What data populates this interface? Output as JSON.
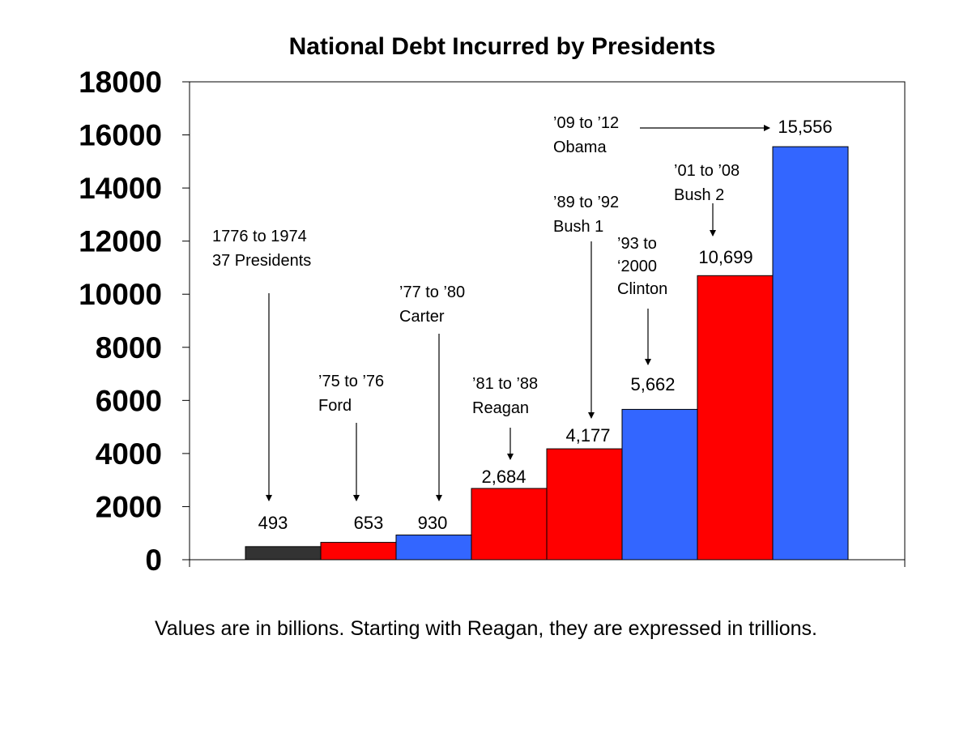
{
  "chart_data": {
    "type": "bar",
    "title": "National Debt Incurred by Presidents",
    "xlabel": "",
    "ylabel": "",
    "ylim": [
      0,
      18000
    ],
    "yticks": [
      "0",
      "2000",
      "4000",
      "6000",
      "8000",
      "10000",
      "12000",
      "14000",
      "16000",
      "18000"
    ],
    "grid": false,
    "legend": "none",
    "bars": [
      {
        "value": 493,
        "label": "493",
        "period": "1776 to 1974",
        "who": "37 Presidents",
        "color": "#333333"
      },
      {
        "value": 653,
        "label": "653",
        "period": "’75 to ’76",
        "who": "Ford",
        "color": "#ff0000"
      },
      {
        "value": 930,
        "label": "930",
        "period": "’77 to ’80",
        "who": "Carter",
        "color": "#3366ff"
      },
      {
        "value": 2684,
        "label": "2,684",
        "period": "’81 to ’88",
        "who": "Reagan",
        "color": "#ff0000"
      },
      {
        "value": 4177,
        "label": "4,177",
        "period": "’89 to ’92",
        "who": "Bush 1",
        "color": "#ff0000"
      },
      {
        "value": 5662,
        "label": "5,662",
        "period": "’93 to",
        "period2": "‘2000",
        "who": "Clinton",
        "color": "#3366ff"
      },
      {
        "value": 10699,
        "label": "10,699",
        "period": "’01 to ’08",
        "who": "Bush 2",
        "color": "#ff0000"
      },
      {
        "value": 15556,
        "label": "15,556",
        "period": "’09 to ’12",
        "who": "Obama",
        "color": "#3366ff"
      }
    ],
    "footnote": "Values are in billions. Starting with Reagan, they are expressed in trillions."
  }
}
